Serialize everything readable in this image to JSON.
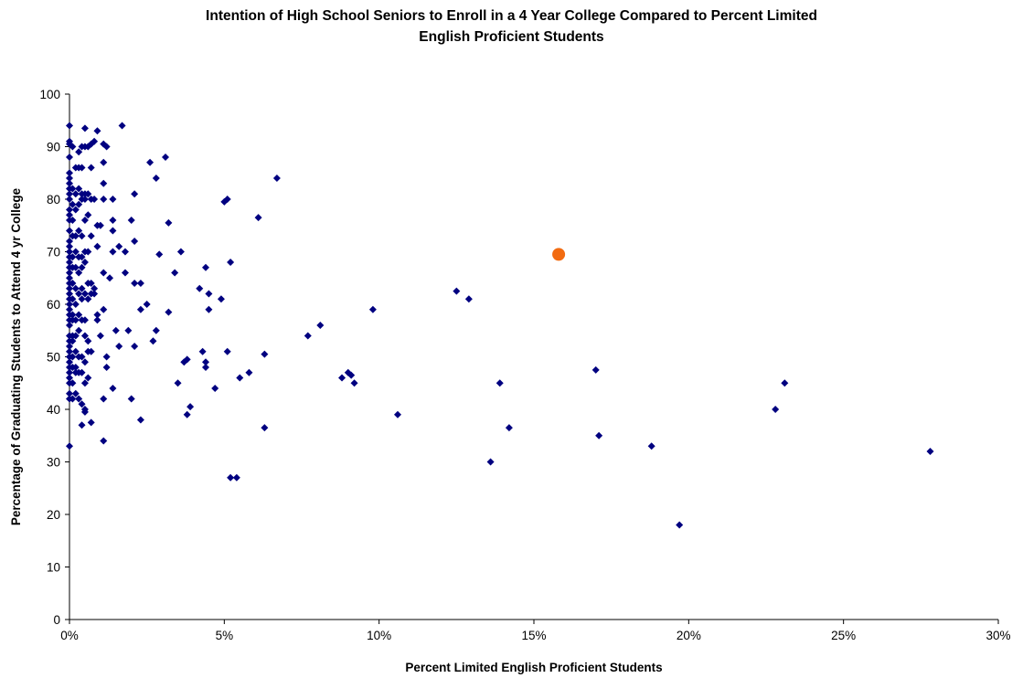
{
  "chart_data": {
    "type": "scatter",
    "title_lines": [
      "Intention of High School Seniors to Enroll in a 4 Year College Compared to Percent Limited",
      "English Proficient Students"
    ],
    "xlabel": "Percent Limited English Proficient Students",
    "ylabel": "Percentage of Graduating Students to Attend 4 yr College",
    "xlim": [
      0,
      0.3
    ],
    "ylim": [
      0,
      100
    ],
    "x_ticks": [
      0,
      0.05,
      0.1,
      0.15,
      0.2,
      0.25,
      0.3
    ],
    "x_tick_labels": [
      "0%",
      "5%",
      "10%",
      "15%",
      "20%",
      "25%",
      "30%"
    ],
    "y_ticks": [
      0,
      10,
      20,
      30,
      40,
      50,
      60,
      70,
      80,
      90,
      100
    ],
    "y_tick_labels": [
      "0",
      "10",
      "20",
      "30",
      "40",
      "50",
      "60",
      "70",
      "80",
      "90",
      "100"
    ],
    "grid": false,
    "series": [
      {
        "color": "#000080",
        "marker": "diamond",
        "points": [
          [
            0.0,
            94
          ],
          [
            0.0,
            91
          ],
          [
            0.0,
            90.5
          ],
          [
            0.0,
            88
          ],
          [
            0.0,
            85
          ],
          [
            0.0,
            84
          ],
          [
            0.0,
            83
          ],
          [
            0.0,
            82
          ],
          [
            0.0,
            81
          ],
          [
            0.0,
            80
          ],
          [
            0.0,
            78
          ],
          [
            0.0,
            77
          ],
          [
            0.0,
            76
          ],
          [
            0.0,
            74
          ],
          [
            0.0,
            72
          ],
          [
            0.0,
            71
          ],
          [
            0.0,
            70
          ],
          [
            0.0,
            69
          ],
          [
            0.0,
            68
          ],
          [
            0.0,
            67
          ],
          [
            0.0,
            66
          ],
          [
            0.0,
            65
          ],
          [
            0.0,
            64
          ],
          [
            0.0,
            63
          ],
          [
            0.0,
            62
          ],
          [
            0.0,
            61
          ],
          [
            0.0,
            60
          ],
          [
            0.0,
            59
          ],
          [
            0.0,
            58
          ],
          [
            0.0,
            57
          ],
          [
            0.0,
            56
          ],
          [
            0.0,
            54
          ],
          [
            0.0,
            53
          ],
          [
            0.0,
            52
          ],
          [
            0.0,
            51
          ],
          [
            0.0,
            50
          ],
          [
            0.0,
            49
          ],
          [
            0.0,
            48
          ],
          [
            0.0,
            47
          ],
          [
            0.0,
            46
          ],
          [
            0.0,
            45
          ],
          [
            0.0,
            43
          ],
          [
            0.0,
            42
          ],
          [
            0.0,
            33
          ],
          [
            0.001,
            90
          ],
          [
            0.001,
            82
          ],
          [
            0.001,
            79
          ],
          [
            0.001,
            76
          ],
          [
            0.001,
            73
          ],
          [
            0.001,
            69
          ],
          [
            0.001,
            67
          ],
          [
            0.001,
            64
          ],
          [
            0.001,
            61
          ],
          [
            0.001,
            58
          ],
          [
            0.001,
            57
          ],
          [
            0.001,
            54
          ],
          [
            0.001,
            53
          ],
          [
            0.001,
            50
          ],
          [
            0.001,
            48
          ],
          [
            0.001,
            45
          ],
          [
            0.001,
            42
          ],
          [
            0.002,
            86
          ],
          [
            0.002,
            81
          ],
          [
            0.002,
            78
          ],
          [
            0.002,
            73
          ],
          [
            0.002,
            70
          ],
          [
            0.002,
            67
          ],
          [
            0.002,
            63
          ],
          [
            0.002,
            60
          ],
          [
            0.002,
            57
          ],
          [
            0.002,
            54
          ],
          [
            0.002,
            51
          ],
          [
            0.002,
            48
          ],
          [
            0.002,
            47
          ],
          [
            0.002,
            43
          ],
          [
            0.003,
            89
          ],
          [
            0.003,
            86
          ],
          [
            0.003,
            82
          ],
          [
            0.003,
            79
          ],
          [
            0.003,
            74
          ],
          [
            0.003,
            69
          ],
          [
            0.003,
            66
          ],
          [
            0.003,
            62
          ],
          [
            0.003,
            58
          ],
          [
            0.003,
            55
          ],
          [
            0.003,
            50
          ],
          [
            0.003,
            47
          ],
          [
            0.003,
            42
          ],
          [
            0.004,
            90
          ],
          [
            0.004,
            86
          ],
          [
            0.004,
            81
          ],
          [
            0.004,
            80
          ],
          [
            0.004,
            73
          ],
          [
            0.004,
            69
          ],
          [
            0.004,
            67
          ],
          [
            0.004,
            63
          ],
          [
            0.004,
            61
          ],
          [
            0.004,
            57
          ],
          [
            0.004,
            50
          ],
          [
            0.004,
            47
          ],
          [
            0.004,
            41
          ],
          [
            0.004,
            37
          ],
          [
            0.005,
            93.5
          ],
          [
            0.005,
            90
          ],
          [
            0.005,
            81
          ],
          [
            0.005,
            80
          ],
          [
            0.005,
            76
          ],
          [
            0.005,
            70
          ],
          [
            0.005,
            68
          ],
          [
            0.005,
            62
          ],
          [
            0.005,
            57
          ],
          [
            0.005,
            54
          ],
          [
            0.005,
            49
          ],
          [
            0.005,
            45
          ],
          [
            0.005,
            40
          ],
          [
            0.005,
            39.5
          ],
          [
            0.006,
            90
          ],
          [
            0.006,
            81
          ],
          [
            0.006,
            77
          ],
          [
            0.006,
            70
          ],
          [
            0.006,
            64
          ],
          [
            0.006,
            61
          ],
          [
            0.006,
            53
          ],
          [
            0.006,
            51
          ],
          [
            0.006,
            46
          ],
          [
            0.007,
            90.5
          ],
          [
            0.007,
            86
          ],
          [
            0.007,
            80
          ],
          [
            0.007,
            73
          ],
          [
            0.007,
            64
          ],
          [
            0.007,
            62
          ],
          [
            0.007,
            51
          ],
          [
            0.007,
            37.5
          ],
          [
            0.008,
            91
          ],
          [
            0.008,
            80
          ],
          [
            0.008,
            63
          ],
          [
            0.008,
            62
          ],
          [
            0.009,
            93
          ],
          [
            0.009,
            75
          ],
          [
            0.009,
            71
          ],
          [
            0.009,
            58
          ],
          [
            0.009,
            57
          ],
          [
            0.01,
            75
          ],
          [
            0.01,
            54
          ],
          [
            0.011,
            90.5
          ],
          [
            0.011,
            87
          ],
          [
            0.011,
            83
          ],
          [
            0.011,
            80
          ],
          [
            0.011,
            66
          ],
          [
            0.011,
            59
          ],
          [
            0.011,
            42
          ],
          [
            0.011,
            34
          ],
          [
            0.012,
            90
          ],
          [
            0.012,
            50
          ],
          [
            0.012,
            48
          ],
          [
            0.013,
            65
          ],
          [
            0.014,
            80
          ],
          [
            0.014,
            76
          ],
          [
            0.014,
            74
          ],
          [
            0.014,
            70
          ],
          [
            0.014,
            44
          ],
          [
            0.015,
            55
          ],
          [
            0.016,
            71
          ],
          [
            0.016,
            52
          ],
          [
            0.017,
            94
          ],
          [
            0.018,
            70
          ],
          [
            0.018,
            66
          ],
          [
            0.019,
            55
          ],
          [
            0.02,
            76
          ],
          [
            0.02,
            42
          ],
          [
            0.021,
            81
          ],
          [
            0.021,
            72
          ],
          [
            0.021,
            64
          ],
          [
            0.021,
            52
          ],
          [
            0.023,
            64
          ],
          [
            0.023,
            59
          ],
          [
            0.023,
            38
          ],
          [
            0.025,
            60
          ],
          [
            0.026,
            87
          ],
          [
            0.027,
            53
          ],
          [
            0.028,
            84
          ],
          [
            0.028,
            55
          ],
          [
            0.029,
            69.5
          ],
          [
            0.031,
            88
          ],
          [
            0.032,
            75.5
          ],
          [
            0.032,
            58.5
          ],
          [
            0.034,
            66
          ],
          [
            0.035,
            45
          ],
          [
            0.036,
            70
          ],
          [
            0.037,
            49
          ],
          [
            0.038,
            49.5
          ],
          [
            0.038,
            39
          ],
          [
            0.039,
            40.5
          ],
          [
            0.042,
            63
          ],
          [
            0.043,
            51
          ],
          [
            0.044,
            67
          ],
          [
            0.044,
            49
          ],
          [
            0.044,
            48
          ],
          [
            0.045,
            62
          ],
          [
            0.045,
            59
          ],
          [
            0.047,
            44
          ],
          [
            0.049,
            61
          ],
          [
            0.05,
            79.5
          ],
          [
            0.051,
            80
          ],
          [
            0.051,
            51
          ],
          [
            0.052,
            68
          ],
          [
            0.052,
            27
          ],
          [
            0.054,
            27
          ],
          [
            0.055,
            46
          ],
          [
            0.058,
            47
          ],
          [
            0.061,
            76.5
          ],
          [
            0.063,
            50.5
          ],
          [
            0.063,
            36.5
          ],
          [
            0.067,
            84
          ],
          [
            0.077,
            54
          ],
          [
            0.081,
            56
          ],
          [
            0.088,
            46
          ],
          [
            0.09,
            47
          ],
          [
            0.091,
            46.5
          ],
          [
            0.092,
            45
          ],
          [
            0.098,
            59
          ],
          [
            0.106,
            39
          ],
          [
            0.125,
            62.5
          ],
          [
            0.129,
            61
          ],
          [
            0.136,
            30
          ],
          [
            0.139,
            45
          ],
          [
            0.142,
            36.5
          ],
          [
            0.17,
            47.5
          ],
          [
            0.171,
            35
          ],
          [
            0.188,
            33
          ],
          [
            0.197,
            18
          ],
          [
            0.228,
            40
          ],
          [
            0.231,
            45
          ],
          [
            0.278,
            32
          ]
        ]
      },
      {
        "color": "#f26b11",
        "marker": "circle",
        "points": [
          [
            0.158,
            69.5
          ]
        ]
      }
    ]
  }
}
